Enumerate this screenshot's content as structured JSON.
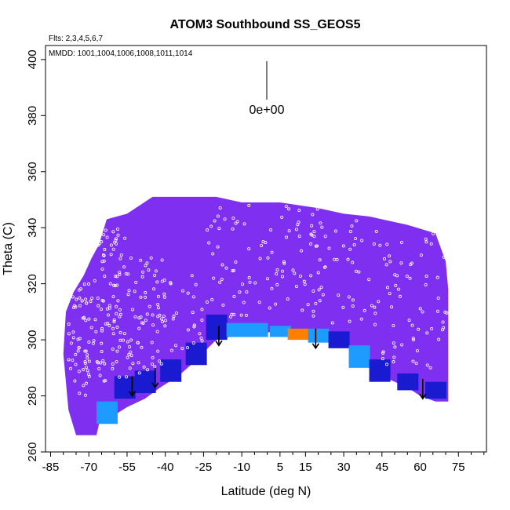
{
  "chart_data": {
    "type": "heatmap",
    "title": "ATOM3 Southbound SS_GEOS5",
    "flights_note": "Flts: 2,3,4,5,6,7",
    "mmdd_note": "MMDD: 1001,1004,1006,1008,1011,1014",
    "xlabel": "Latitude (deg N)",
    "ylabel": "Theta (C)",
    "xlim": [
      -87,
      86
    ],
    "ylim": [
      260,
      405
    ],
    "x_ticks": [
      -85,
      -70,
      -55,
      -40,
      -25,
      -10,
      5,
      15,
      30,
      45,
      60,
      75
    ],
    "x_tick_labels": [
      "-85",
      "-70",
      "-55",
      "-40",
      "-25",
      "-10",
      "5",
      "15",
      "30",
      "45",
      "60",
      "75"
    ],
    "y_ticks": [
      260,
      280,
      300,
      320,
      340,
      360,
      380,
      400
    ],
    "y_tick_labels": [
      "260",
      "280",
      "300",
      "320",
      "340",
      "360",
      "380",
      "400"
    ],
    "scale_label": "0e+00",
    "colors": {
      "background_field": "#7f2ff0",
      "low": "#1a1ad0",
      "mid": "#1e9bff",
      "high": "#ff7f00",
      "points": "#ffffff",
      "arrows": "#000000"
    },
    "field_top": [
      [
        -79,
        310
      ],
      [
        -76,
        317
      ],
      [
        -72,
        323
      ],
      [
        -69,
        329
      ],
      [
        -66,
        334
      ],
      [
        -63,
        343
      ],
      [
        -55,
        345
      ],
      [
        -45,
        351
      ],
      [
        -20,
        351
      ],
      [
        -10,
        349
      ],
      [
        5,
        349
      ],
      [
        20,
        347
      ],
      [
        30,
        345
      ],
      [
        40,
        344
      ],
      [
        55,
        341
      ],
      [
        66,
        338
      ],
      [
        70,
        328
      ],
      [
        71,
        318
      ]
    ],
    "field_bottom": [
      [
        71,
        278
      ],
      [
        66,
        278
      ],
      [
        60,
        280
      ],
      [
        55,
        283
      ],
      [
        45,
        287
      ],
      [
        40,
        290
      ],
      [
        33,
        297
      ],
      [
        25,
        302
      ],
      [
        15,
        303
      ],
      [
        5,
        303
      ],
      [
        -10,
        302
      ],
      [
        -20,
        300
      ],
      [
        -30,
        291
      ],
      [
        -35,
        287
      ],
      [
        -42,
        283
      ],
      [
        -48,
        279
      ],
      [
        -55,
        276
      ],
      [
        -62,
        272
      ],
      [
        -66,
        270
      ],
      [
        -67,
        266
      ],
      [
        -75,
        266
      ],
      [
        -78,
        275
      ],
      [
        -80,
        295
      ]
    ],
    "enhanced_band": [
      {
        "lat": -63,
        "theta_min": 270,
        "theta_max": 278,
        "level": "mid"
      },
      {
        "lat": -56,
        "theta_min": 279,
        "theta_max": 287,
        "level": "low"
      },
      {
        "lat": -48,
        "theta_min": 281,
        "theta_max": 289,
        "level": "low"
      },
      {
        "lat": -38,
        "theta_min": 285,
        "theta_max": 293,
        "level": "low"
      },
      {
        "lat": -28,
        "theta_min": 291,
        "theta_max": 299,
        "level": "low"
      },
      {
        "lat": -20,
        "theta_min": 300,
        "theta_max": 309,
        "level": "low"
      },
      {
        "lat": -12,
        "theta_min": 301,
        "theta_max": 306,
        "level": "mid"
      },
      {
        "lat": -4,
        "theta_min": 301,
        "theta_max": 306,
        "level": "mid"
      },
      {
        "lat": 5,
        "theta_min": 301,
        "theta_max": 305,
        "level": "mid"
      },
      {
        "lat": 12,
        "theta_min": 300,
        "theta_max": 304,
        "level": "high"
      },
      {
        "lat": 20,
        "theta_min": 299,
        "theta_max": 304,
        "level": "mid"
      },
      {
        "lat": 28,
        "theta_min": 297,
        "theta_max": 303,
        "level": "low"
      },
      {
        "lat": 36,
        "theta_min": 290,
        "theta_max": 298,
        "level": "mid"
      },
      {
        "lat": 44,
        "theta_min": 285,
        "theta_max": 293,
        "level": "low"
      },
      {
        "lat": 55,
        "theta_min": 282,
        "theta_max": 288,
        "level": "low"
      },
      {
        "lat": 66,
        "theta_min": 279,
        "theta_max": 285,
        "level": "low"
      }
    ],
    "arrows": [
      {
        "lat": -53,
        "theta_top": 287,
        "theta_bottom": 280
      },
      {
        "lat": -44,
        "theta_top": 290,
        "theta_bottom": 283
      },
      {
        "lat": -19,
        "theta_top": 305,
        "theta_bottom": 298
      },
      {
        "lat": 19,
        "theta_top": 304,
        "theta_bottom": 297
      },
      {
        "lat": 61,
        "theta_top": 286,
        "theta_bottom": 279
      }
    ],
    "point_columns": [
      {
        "lat_from": -78,
        "lat_to": -68,
        "theta_from": 280,
        "theta_to": 320,
        "n": 60
      },
      {
        "lat_from": -68,
        "lat_to": -55,
        "theta_from": 285,
        "theta_to": 340,
        "n": 90
      },
      {
        "lat_from": -55,
        "lat_to": -40,
        "theta_from": 288,
        "theta_to": 330,
        "n": 70
      },
      {
        "lat_from": -40,
        "lat_to": -25,
        "theta_from": 296,
        "theta_to": 325,
        "n": 25
      },
      {
        "lat_from": -25,
        "lat_to": -5,
        "theta_from": 308,
        "theta_to": 348,
        "n": 40
      },
      {
        "lat_from": -5,
        "lat_to": 20,
        "theta_from": 308,
        "theta_to": 348,
        "n": 55
      },
      {
        "lat_from": 20,
        "lat_to": 45,
        "theta_from": 305,
        "theta_to": 345,
        "n": 45
      },
      {
        "lat_from": 45,
        "lat_to": 71,
        "theta_from": 290,
        "theta_to": 340,
        "n": 60
      }
    ]
  }
}
